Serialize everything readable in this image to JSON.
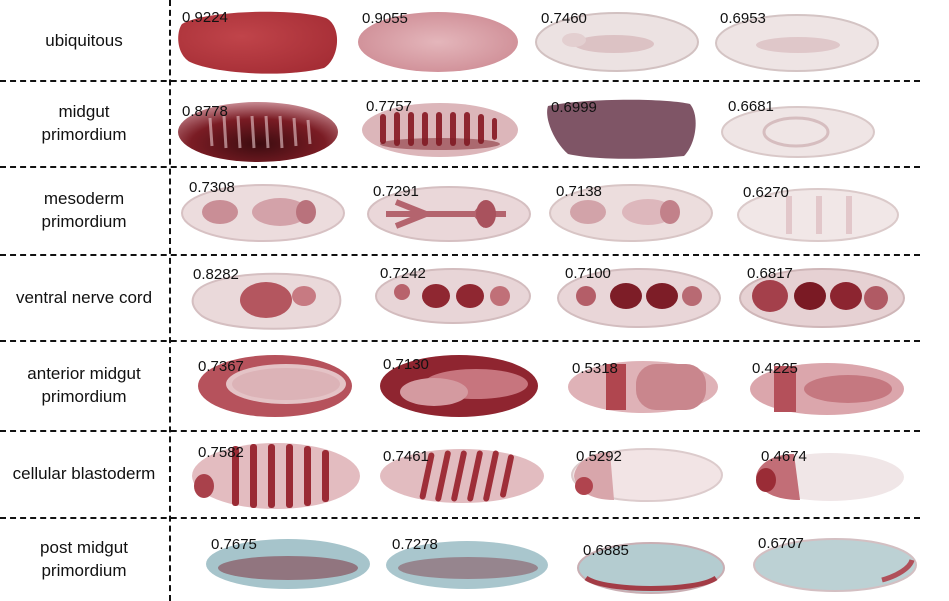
{
  "rows": [
    {
      "label": "ubiquitous",
      "scores": [
        "0.9224",
        "0.9055",
        "0.7460",
        "0.6953"
      ]
    },
    {
      "label": "midgut\nprimordium",
      "scores": [
        "0.8778",
        "0.7757",
        "0.6999",
        "0.6681"
      ]
    },
    {
      "label": "mesoderm\nprimordium",
      "scores": [
        "0.7308",
        "0.7291",
        "0.7138",
        "0.6270"
      ]
    },
    {
      "label": "ventral nerve cord",
      "scores": [
        "0.8282",
        "0.7242",
        "0.7100",
        "0.6817"
      ]
    },
    {
      "label": "anterior midgut\nprimordium",
      "scores": [
        "0.7367",
        "0.7130",
        "0.5318",
        "0.4225"
      ]
    },
    {
      "label": "cellular blastoderm",
      "scores": [
        "0.7582",
        "0.7461",
        "0.5292",
        "0.4674"
      ]
    },
    {
      "label": "post midgut\nprimordium",
      "scores": [
        "0.7675",
        "0.7278",
        "0.6885",
        "0.6707"
      ]
    }
  ],
  "colors": {
    "stain_dark": "#8a1c22",
    "stain_medium": "#b5505a",
    "stain_light": "#e6c3c6",
    "embryo_pale": "#efe6e6",
    "counterstain_blue": "#9fc1c8"
  }
}
